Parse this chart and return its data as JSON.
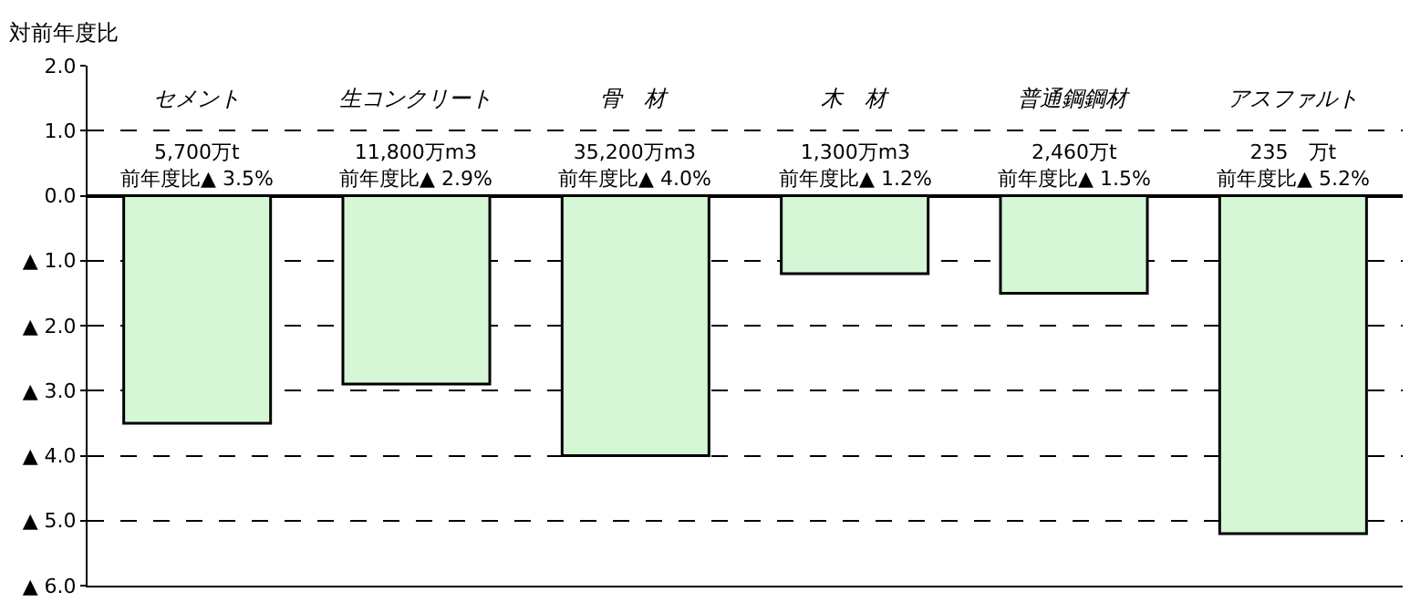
{
  "chart_data": {
    "type": "bar",
    "title": "対前年度比",
    "categories": [
      "セメント",
      "生コンクリート",
      "骨　材",
      "木　材",
      "普通鋼鋼材",
      "アスファルト"
    ],
    "values": [
      -3.5,
      -2.9,
      -4.0,
      -1.2,
      -1.5,
      -5.2
    ],
    "annotations": [
      "5,700万t\n前年度比▲ 3.5%",
      "11,800万m3\n前年度比▲ 2.9%",
      "35,200万m3\n前年度比▲ 4.0%",
      "1,300万m3\n前年度比▲ 1.2%",
      "2,460万t\n前年度比▲ 1.5%",
      "235　万t\n前年度比▲ 5.2%"
    ],
    "color": "#d6f7d6",
    "ylim": [
      -6,
      2
    ],
    "yticks": [
      {
        "value": 2,
        "label": "2.0"
      },
      {
        "value": 1,
        "label": "1.0"
      },
      {
        "value": 0,
        "label": "0.0"
      },
      {
        "value": -1,
        "label": "▲ 1.0"
      },
      {
        "value": -2,
        "label": "▲ 2.0"
      },
      {
        "value": -3,
        "label": "▲ 3.0"
      },
      {
        "value": -4,
        "label": "▲ 4.0"
      },
      {
        "value": -5,
        "label": "▲ 5.0"
      },
      {
        "value": -6,
        "label": "▲ 6.0"
      }
    ],
    "grid": "y"
  }
}
